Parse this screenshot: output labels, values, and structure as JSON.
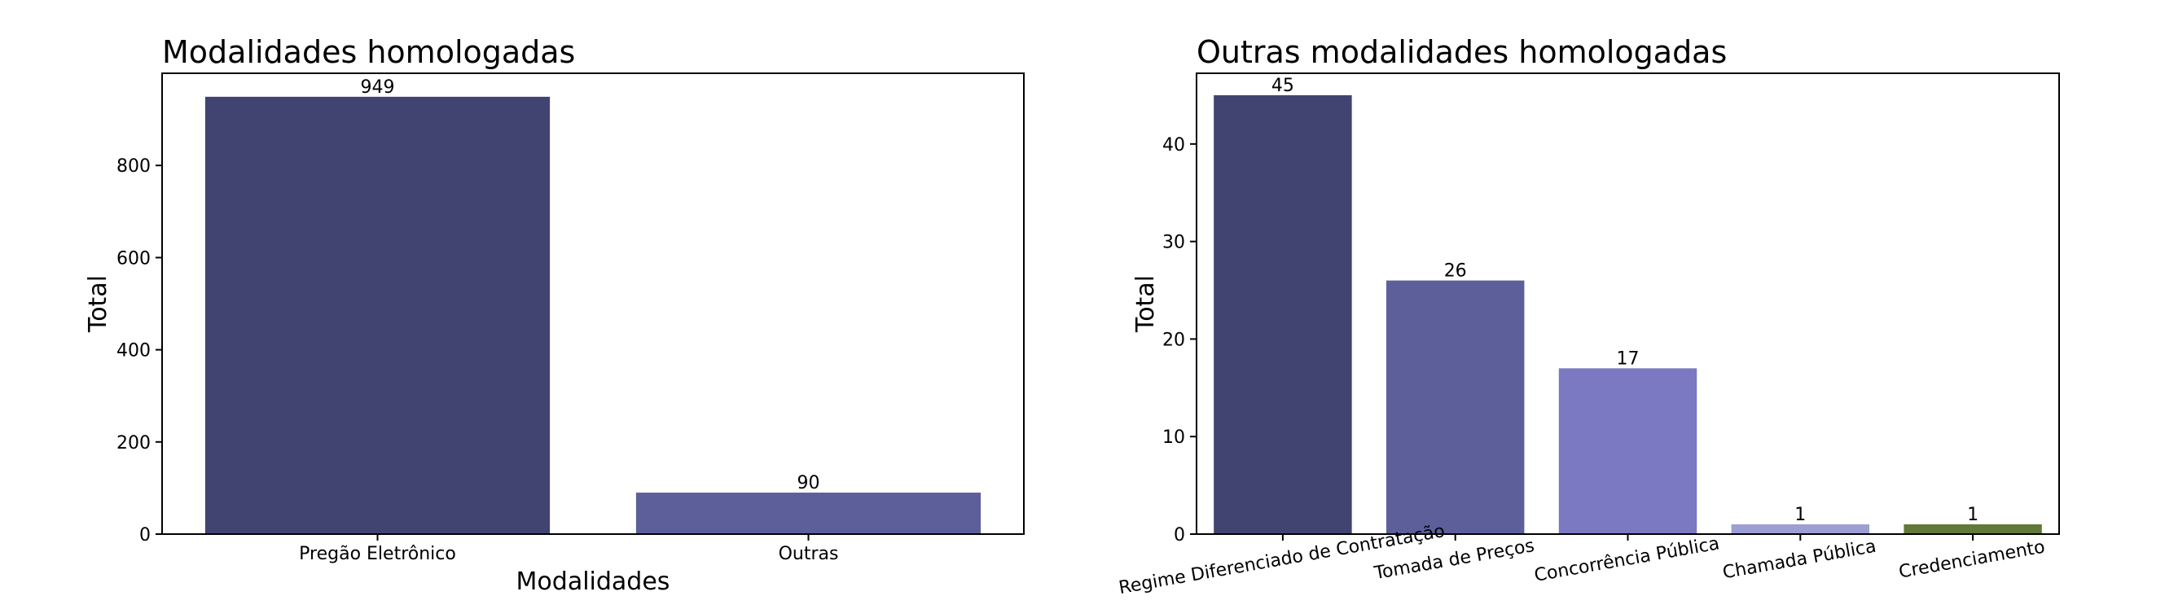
{
  "chart_data": [
    {
      "type": "bar",
      "title": "Modalidades homologadas",
      "xlabel": "Modalidades",
      "ylabel": "Total",
      "categories": [
        "Pregão Eletrônico",
        "Outras"
      ],
      "values": [
        949,
        90
      ],
      "value_labels": [
        "949",
        "90"
      ],
      "colors": [
        "#414471",
        "#5d5f9b"
      ],
      "ylim": [
        0,
        1000
      ],
      "yticks": [
        0,
        200,
        400,
        600,
        800
      ],
      "ytick_labels": [
        "0",
        "200",
        "400",
        "600",
        "800"
      ],
      "grid": false
    },
    {
      "type": "bar",
      "title": "Outras modalidades homologadas",
      "xlabel": "",
      "ylabel": "Total",
      "categories": [
        "Regime Diferenciado de Contratação",
        "Tomada de Preços",
        "Concorrência Pública",
        "Chamada Pública",
        "Credenciamento"
      ],
      "values": [
        45,
        26,
        17,
        1,
        1
      ],
      "value_labels": [
        "45",
        "26",
        "17",
        "1",
        "1"
      ],
      "colors": [
        "#414471",
        "#5d5f9b",
        "#7a79c1",
        "#9d9ed4",
        "#637939"
      ],
      "ylim": [
        0,
        47.25
      ],
      "yticks": [
        0,
        10,
        20,
        30,
        40
      ],
      "ytick_labels": [
        "0",
        "10",
        "20",
        "30",
        "40"
      ],
      "tick_rotation": 10,
      "grid": false
    }
  ]
}
